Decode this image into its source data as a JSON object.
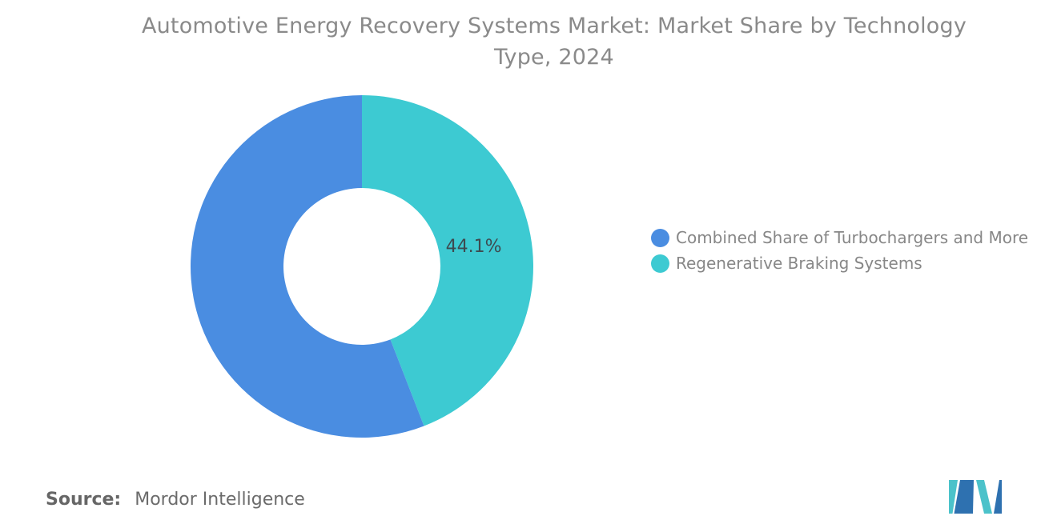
{
  "title": {
    "line1": "Automotive Energy Recovery Systems Market: Market Share by Technology",
    "line2": "Type, 2024",
    "full": "Automotive Energy Recovery Systems Market: Market Share by Technology Type, 2024"
  },
  "chart_data": {
    "type": "pie",
    "subtype": "donut",
    "title": "Automotive Energy Recovery Systems Market: Market Share by Technology Type, 2024",
    "start_angle_deg_clockwise_from_top": 0,
    "inner_radius_ratio": 0.46,
    "legend_position": "right",
    "segments": [
      {
        "name": "Regenerative Braking Systems",
        "value": 44.1,
        "color": "#3dcad2",
        "data_label": "44.1%"
      },
      {
        "name": "Combined Share of Turbochargers and More",
        "value": 55.9,
        "color": "#4a8de1",
        "data_label": ""
      }
    ]
  },
  "legend": {
    "items": [
      {
        "label": "Combined Share of Turbochargers and More",
        "color": "#4a8de1"
      },
      {
        "label": "Regenerative Braking Systems",
        "color": "#3dcad2"
      }
    ]
  },
  "source": {
    "label": "Source:",
    "text": "Mordor Intelligence"
  },
  "logo": {
    "name": "mordor-intelligence-logo-mark",
    "teal": "#4bc2ca",
    "blue": "#2e71b0"
  }
}
